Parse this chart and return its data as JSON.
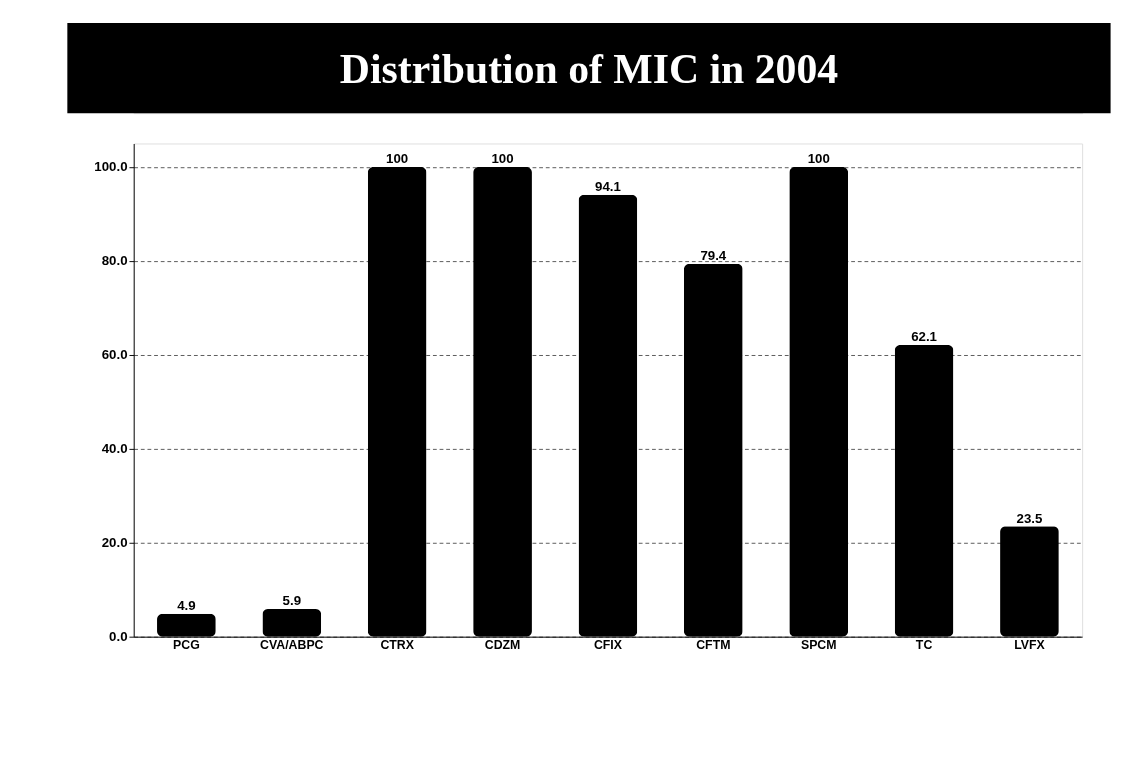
{
  "chart_data": {
    "type": "bar",
    "title": "Distribution of MIC in 2004",
    "categories": [
      "PCG",
      "CVA/ABPC",
      "CTRX",
      "CDZM",
      "CFIX",
      "CFTM",
      "SPCM",
      "TC",
      "LVFX"
    ],
    "values": [
      4.9,
      5.9,
      100,
      100,
      94.1,
      79.4,
      100,
      62.1,
      23.5
    ],
    "value_labels": [
      "4.9",
      "5.9",
      "100",
      "100",
      "94.1",
      "79.4",
      "100",
      "62.1",
      "23.5"
    ],
    "color": "#000000",
    "ylim": [
      0,
      105
    ],
    "yticks": [
      {
        "value": 0,
        "label": "0.0"
      },
      {
        "value": 20,
        "label": "20.0"
      },
      {
        "value": 40,
        "label": "40.0"
      },
      {
        "value": 60,
        "label": "60.0"
      },
      {
        "value": 80,
        "label": "80.0"
      },
      {
        "value": 100,
        "label": "100.0"
      }
    ],
    "grid": "y"
  }
}
